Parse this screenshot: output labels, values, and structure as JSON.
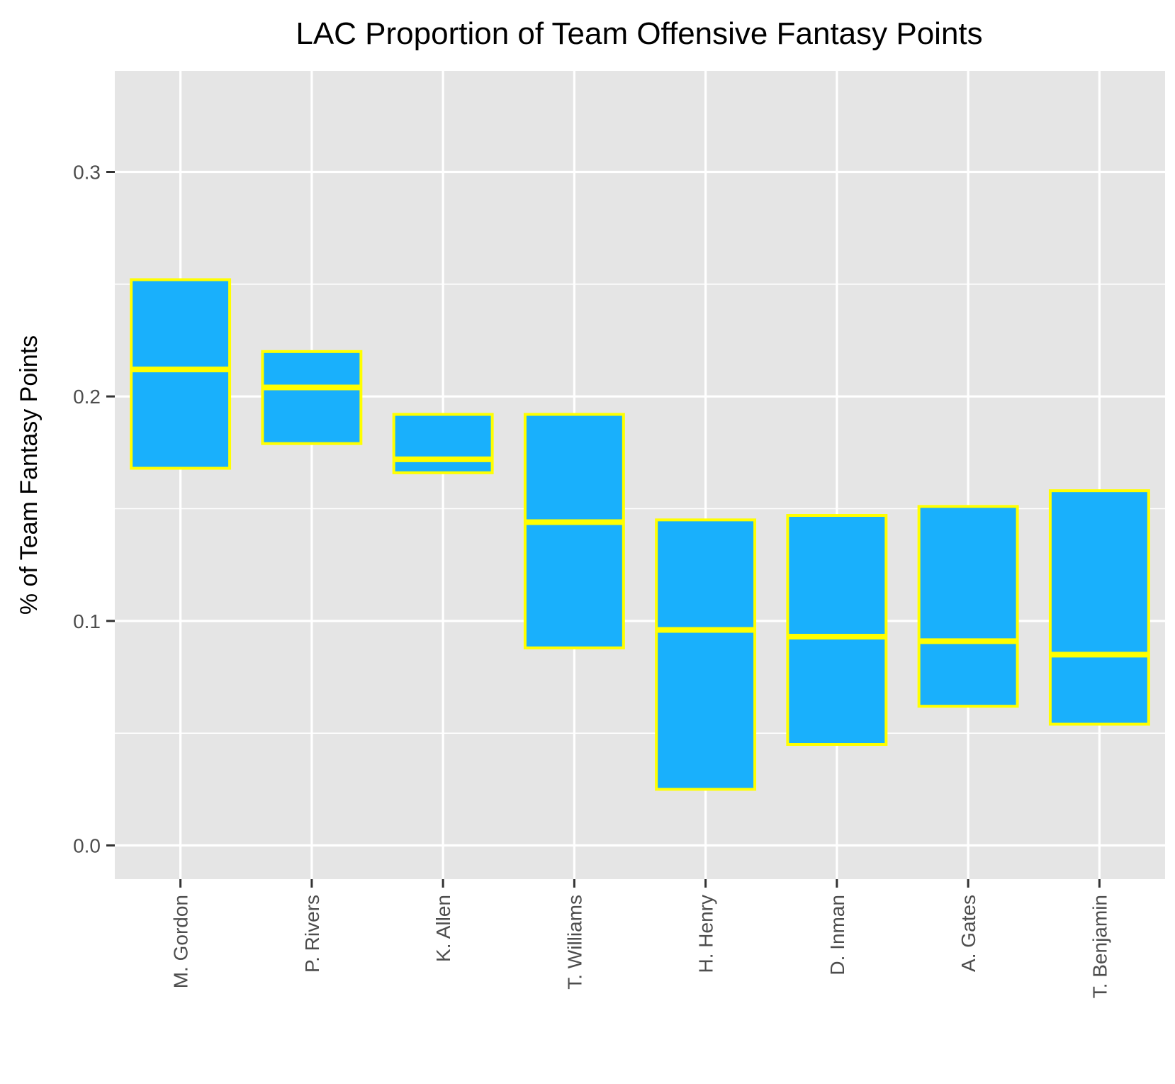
{
  "chart_data": {
    "type": "boxplot",
    "title": "LAC Proportion of Team Offensive Fantasy Points",
    "xlabel": "",
    "ylabel": "% of Team Fantasy Points",
    "ylim": [
      -0.015,
      0.345
    ],
    "yticks": [
      "0.0",
      "0.1",
      "0.2",
      "0.3"
    ],
    "ytick_values": [
      0.0,
      0.1,
      0.2,
      0.3
    ],
    "grid": true,
    "colors": {
      "panel": "#e5e5e5",
      "grid": "#ffffff",
      "box_fill": "#19b0fc",
      "box_outline": "#ffff00",
      "tick_label": "#4d4d4d"
    },
    "categories": [
      "M. Gordon",
      "P. Rivers",
      "K. Allen",
      "T. Williams",
      "H. Henry",
      "D. Inman",
      "A. Gates",
      "T. Benjamin"
    ],
    "boxes": [
      {
        "lower": 0.168,
        "median": 0.212,
        "upper": 0.252
      },
      {
        "lower": 0.179,
        "median": 0.204,
        "upper": 0.22
      },
      {
        "lower": 0.166,
        "median": 0.172,
        "upper": 0.192
      },
      {
        "lower": 0.088,
        "median": 0.144,
        "upper": 0.192
      },
      {
        "lower": 0.025,
        "median": 0.096,
        "upper": 0.145
      },
      {
        "lower": 0.045,
        "median": 0.093,
        "upper": 0.147
      },
      {
        "lower": 0.062,
        "median": 0.091,
        "upper": 0.151
      },
      {
        "lower": 0.054,
        "median": 0.085,
        "upper": 0.158
      }
    ]
  }
}
